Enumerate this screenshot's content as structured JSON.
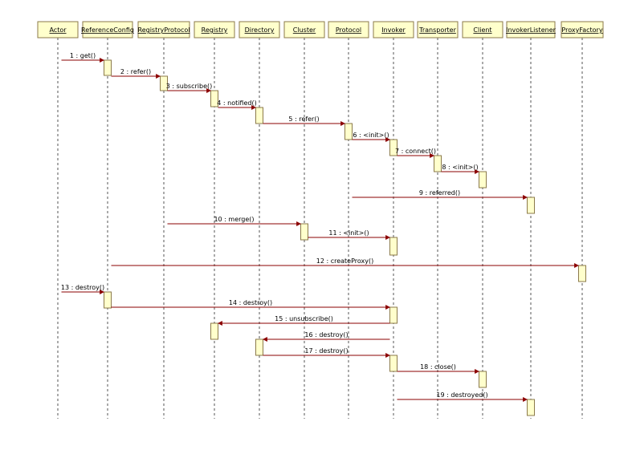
{
  "colors": {
    "box_fill": "#ffffcc",
    "box_stroke": "#8b7a4a",
    "lifeline": "#555555",
    "message": "#8b0000"
  },
  "participants": [
    {
      "id": "actor",
      "name": "Actor"
    },
    {
      "id": "referenceconfig",
      "name": "ReferenceConfig"
    },
    {
      "id": "registryprotocol",
      "name": "RegistryProtocol"
    },
    {
      "id": "registry",
      "name": "Registry"
    },
    {
      "id": "directory",
      "name": "Directory"
    },
    {
      "id": "cluster",
      "name": "Cluster"
    },
    {
      "id": "protocol",
      "name": "Protocol"
    },
    {
      "id": "invoker",
      "name": "Invoker"
    },
    {
      "id": "transporter",
      "name": "Transporter"
    },
    {
      "id": "client",
      "name": "Client"
    },
    {
      "id": "invokerlistener",
      "name": "InvokerListener"
    },
    {
      "id": "proxyfactory",
      "name": "ProxyFactory"
    }
  ],
  "messages": [
    {
      "label": "1 : get()",
      "from": 0,
      "to": 1
    },
    {
      "label": "2 : refer()",
      "from": 1,
      "to": 2
    },
    {
      "label": "3 : subscribe()",
      "from": 2,
      "to": 3
    },
    {
      "label": "4 : notified()",
      "from": 3,
      "to": 4
    },
    {
      "label": "5 : refer()",
      "from": 4,
      "to": 6
    },
    {
      "label": "6 : <init>()",
      "from": 6,
      "to": 7
    },
    {
      "label": "7 : connect()",
      "from": 7,
      "to": 8
    },
    {
      "label": "8 : <init>()",
      "from": 8,
      "to": 9
    },
    {
      "label": "9 : referred()",
      "from": 6,
      "to": 10
    },
    {
      "label": "10 : merge()",
      "from": 2,
      "to": 5
    },
    {
      "label": "11 : <init>()",
      "from": 5,
      "to": 7
    },
    {
      "label": "12 : createProxy()",
      "from": 1,
      "to": 11
    },
    {
      "label": "13 : destroy()",
      "from": 0,
      "to": 1
    },
    {
      "label": "14 : destroy()",
      "from": 1,
      "to": 7
    },
    {
      "label": "15 : unsubscribe()",
      "from": 7,
      "to": 3
    },
    {
      "label": "16 : destroy()",
      "from": 7,
      "to": 4
    },
    {
      "label": "17 : destroy()",
      "from": 4,
      "to": 7
    },
    {
      "label": "18 : close()",
      "from": 7,
      "to": 9
    },
    {
      "label": "19 : destroyed()",
      "from": 7,
      "to": 10
    }
  ]
}
